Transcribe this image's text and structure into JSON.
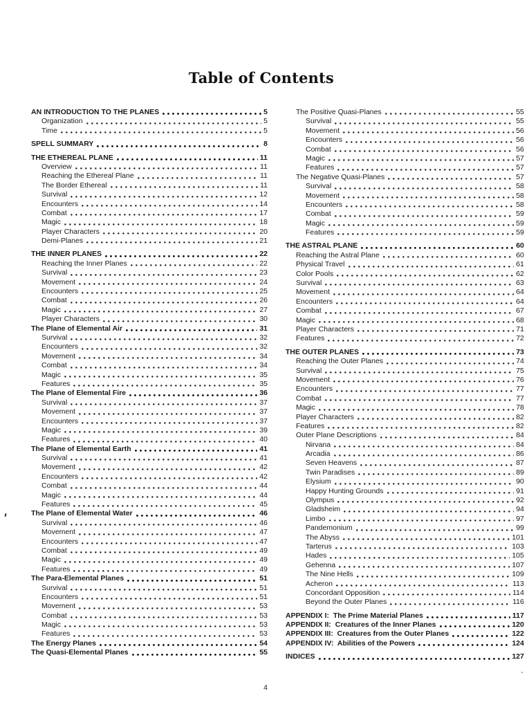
{
  "title": "Table of Contents",
  "page_number": "4",
  "columns": {
    "left": [
      {
        "label": "AN INTRODUCTION TO THE PLANES",
        "page": "5",
        "level": 0,
        "bold": true,
        "gap": false
      },
      {
        "label": "Organization",
        "page": "5",
        "level": 1,
        "bold": false,
        "gap": false
      },
      {
        "label": "Time",
        "page": "5",
        "level": 1,
        "bold": false,
        "gap": false
      },
      {
        "label": "SPELL SUMMARY",
        "page": "8",
        "level": 0,
        "bold": true,
        "gap": true
      },
      {
        "label": "THE ETHEREAL PLANE",
        "page": "11",
        "level": 0,
        "bold": true,
        "gap": true
      },
      {
        "label": "Overview",
        "page": "11",
        "level": 1,
        "bold": false,
        "gap": false
      },
      {
        "label": "Reaching the Ethereal Plane",
        "page": "11",
        "level": 1,
        "bold": false,
        "gap": false
      },
      {
        "label": "The Border Ethereal",
        "page": "11",
        "level": 1,
        "bold": false,
        "gap": false
      },
      {
        "label": "Survival",
        "page": "12",
        "level": 1,
        "bold": false,
        "gap": false
      },
      {
        "label": "Encounters",
        "page": "14",
        "level": 1,
        "bold": false,
        "gap": false
      },
      {
        "label": "Combat",
        "page": "17",
        "level": 1,
        "bold": false,
        "gap": false
      },
      {
        "label": "Magic",
        "page": "18",
        "level": 1,
        "bold": false,
        "gap": false
      },
      {
        "label": "Player Characters",
        "page": "20",
        "level": 1,
        "bold": false,
        "gap": false
      },
      {
        "label": "Demi-Planes",
        "page": "21",
        "level": 1,
        "bold": false,
        "gap": false
      },
      {
        "label": "THE INNER PLANES",
        "page": "22",
        "level": 0,
        "bold": true,
        "gap": true
      },
      {
        "label": "Reaching the Inner Planes",
        "page": "22",
        "level": 1,
        "bold": false,
        "gap": false
      },
      {
        "label": "Survival",
        "page": "23",
        "level": 1,
        "bold": false,
        "gap": false
      },
      {
        "label": "Movement",
        "page": "24",
        "level": 1,
        "bold": false,
        "gap": false
      },
      {
        "label": "Encounters",
        "page": "25",
        "level": 1,
        "bold": false,
        "gap": false
      },
      {
        "label": "Combat",
        "page": "26",
        "level": 1,
        "bold": false,
        "gap": false
      },
      {
        "label": "Magic",
        "page": "27",
        "level": 1,
        "bold": false,
        "gap": false
      },
      {
        "label": "Player Characters",
        "page": "30",
        "level": 1,
        "bold": false,
        "gap": false
      },
      {
        "label": "The Plane of Elemental Air",
        "page": "31",
        "level": 0,
        "bold": true,
        "gap": false
      },
      {
        "label": "Survival",
        "page": "32",
        "level": 1,
        "bold": false,
        "gap": false
      },
      {
        "label": "Encounters",
        "page": "32",
        "level": 1,
        "bold": false,
        "gap": false
      },
      {
        "label": "Movement",
        "page": "34",
        "level": 1,
        "bold": false,
        "gap": false
      },
      {
        "label": "Combat",
        "page": "34",
        "level": 1,
        "bold": false,
        "gap": false
      },
      {
        "label": "Magic",
        "page": "35",
        "level": 1,
        "bold": false,
        "gap": false
      },
      {
        "label": "Features",
        "page": "35",
        "level": 1,
        "bold": false,
        "gap": false
      },
      {
        "label": "The Plane of Elemental Fire",
        "page": "36",
        "level": 0,
        "bold": true,
        "gap": false
      },
      {
        "label": "Survival",
        "page": "37",
        "level": 1,
        "bold": false,
        "gap": false
      },
      {
        "label": "Movement",
        "page": "37",
        "level": 1,
        "bold": false,
        "gap": false
      },
      {
        "label": "Encounters",
        "page": "37",
        "level": 1,
        "bold": false,
        "gap": false
      },
      {
        "label": "Magic",
        "page": "39",
        "level": 1,
        "bold": false,
        "gap": false
      },
      {
        "label": "Features",
        "page": "40",
        "level": 1,
        "bold": false,
        "gap": false
      },
      {
        "label": "The Plane of Elemental Earth",
        "page": "41",
        "level": 0,
        "bold": true,
        "gap": false
      },
      {
        "label": "Survival",
        "page": "41",
        "level": 1,
        "bold": false,
        "gap": false
      },
      {
        "label": "Movement",
        "page": "42",
        "level": 1,
        "bold": false,
        "gap": false
      },
      {
        "label": "Encounters",
        "page": "42",
        "level": 1,
        "bold": false,
        "gap": false
      },
      {
        "label": "Combat",
        "page": "44",
        "level": 1,
        "bold": false,
        "gap": false
      },
      {
        "label": "Magic",
        "page": "44",
        "level": 1,
        "bold": false,
        "gap": false
      },
      {
        "label": "Features",
        "page": "45",
        "level": 1,
        "bold": false,
        "gap": false
      },
      {
        "label": "The Plane of Elemental Water",
        "page": "46",
        "level": 0,
        "bold": true,
        "gap": false
      },
      {
        "label": "Survival",
        "page": "46",
        "level": 1,
        "bold": false,
        "gap": false
      },
      {
        "label": "Movement",
        "page": "47",
        "level": 1,
        "bold": false,
        "gap": false
      },
      {
        "label": "Encounters",
        "page": "47",
        "level": 1,
        "bold": false,
        "gap": false
      },
      {
        "label": "Combat",
        "page": "49",
        "level": 1,
        "bold": false,
        "gap": false
      },
      {
        "label": "Magic",
        "page": "49",
        "level": 1,
        "bold": false,
        "gap": false
      },
      {
        "label": "Features",
        "page": "49",
        "level": 1,
        "bold": false,
        "gap": false
      },
      {
        "label": "The Para-Elemental Planes",
        "page": "51",
        "level": 0,
        "bold": true,
        "gap": false
      },
      {
        "label": "Survival",
        "page": "51",
        "level": 1,
        "bold": false,
        "gap": false
      },
      {
        "label": "Encounters",
        "page": "51",
        "level": 1,
        "bold": false,
        "gap": false
      },
      {
        "label": "Movement",
        "page": "53",
        "level": 1,
        "bold": false,
        "gap": false
      },
      {
        "label": "Combat",
        "page": "53",
        "level": 1,
        "bold": false,
        "gap": false
      },
      {
        "label": "Magic",
        "page": "53",
        "level": 1,
        "bold": false,
        "gap": false
      },
      {
        "label": "Features",
        "page": "53",
        "level": 1,
        "bold": false,
        "gap": false
      },
      {
        "label": "The Energy Planes",
        "page": "54",
        "level": 0,
        "bold": true,
        "gap": false
      },
      {
        "label": "The Quasi-Elemental Planes",
        "page": "55",
        "level": 0,
        "bold": true,
        "gap": false
      }
    ],
    "right": [
      {
        "label": "The Positive Quasi-Planes",
        "page": "55",
        "level": 1,
        "bold": false,
        "gap": false
      },
      {
        "label": "Survival",
        "page": "55",
        "level": 2,
        "bold": false,
        "gap": false
      },
      {
        "label": "Movement",
        "page": "56",
        "level": 2,
        "bold": false,
        "gap": false
      },
      {
        "label": "Encounters",
        "page": "56",
        "level": 2,
        "bold": false,
        "gap": false
      },
      {
        "label": "Combat",
        "page": "56",
        "level": 2,
        "bold": false,
        "gap": false
      },
      {
        "label": "Magic",
        "page": "57",
        "level": 2,
        "bold": false,
        "gap": false
      },
      {
        "label": "Features",
        "page": "57",
        "level": 2,
        "bold": false,
        "gap": false
      },
      {
        "label": "The Negative Quasi-Planes",
        "page": "57",
        "level": 1,
        "bold": false,
        "gap": false
      },
      {
        "label": "Survival",
        "page": "58",
        "level": 2,
        "bold": false,
        "gap": false
      },
      {
        "label": "Movement",
        "page": "58",
        "level": 2,
        "bold": false,
        "gap": false
      },
      {
        "label": "Encounters",
        "page": "58",
        "level": 2,
        "bold": false,
        "gap": false
      },
      {
        "label": "Combat",
        "page": "59",
        "level": 2,
        "bold": false,
        "gap": false
      },
      {
        "label": "Magic",
        "page": "59",
        "level": 2,
        "bold": false,
        "gap": false
      },
      {
        "label": "Features",
        "page": "59",
        "level": 2,
        "bold": false,
        "gap": false
      },
      {
        "label": "THE ASTRAL PLANE",
        "page": "60",
        "level": 0,
        "bold": true,
        "gap": true
      },
      {
        "label": "Reaching the Astral Plane",
        "page": "60",
        "level": 1,
        "bold": false,
        "gap": false
      },
      {
        "label": "Physical Travel",
        "page": "61",
        "level": 1,
        "bold": false,
        "gap": false
      },
      {
        "label": "Color Pools",
        "page": "62",
        "level": 1,
        "bold": false,
        "gap": false
      },
      {
        "label": "Survival",
        "page": "63",
        "level": 1,
        "bold": false,
        "gap": false
      },
      {
        "label": "Movement",
        "page": "64",
        "level": 1,
        "bold": false,
        "gap": false
      },
      {
        "label": "Encounters",
        "page": "64",
        "level": 1,
        "bold": false,
        "gap": false
      },
      {
        "label": "Combat",
        "page": "67",
        "level": 1,
        "bold": false,
        "gap": false
      },
      {
        "label": "Magic",
        "page": "68",
        "level": 1,
        "bold": false,
        "gap": false
      },
      {
        "label": "Player Characters",
        "page": "71",
        "level": 1,
        "bold": false,
        "gap": false
      },
      {
        "label": "Features",
        "page": "72",
        "level": 1,
        "bold": false,
        "gap": false
      },
      {
        "label": "THE OUTER PLANES",
        "page": "73",
        "level": 0,
        "bold": true,
        "gap": true
      },
      {
        "label": "Reaching the Outer Planes",
        "page": "74",
        "level": 1,
        "bold": false,
        "gap": false
      },
      {
        "label": "Survival",
        "page": "75",
        "level": 1,
        "bold": false,
        "gap": false
      },
      {
        "label": "Movement",
        "page": "76",
        "level": 1,
        "bold": false,
        "gap": false
      },
      {
        "label": "Encounters",
        "page": "77",
        "level": 1,
        "bold": false,
        "gap": false
      },
      {
        "label": "Combat",
        "page": "77",
        "level": 1,
        "bold": false,
        "gap": false
      },
      {
        "label": "Magic",
        "page": "78",
        "level": 1,
        "bold": false,
        "gap": false
      },
      {
        "label": "Player Characters",
        "page": "82",
        "level": 1,
        "bold": false,
        "gap": false
      },
      {
        "label": "Features",
        "page": "82",
        "level": 1,
        "bold": false,
        "gap": false
      },
      {
        "label": "Outer Plane Descriptions",
        "page": "84",
        "level": 1,
        "bold": false,
        "gap": false
      },
      {
        "label": "Nirvana",
        "page": "84",
        "level": 2,
        "bold": false,
        "gap": false
      },
      {
        "label": "Arcadia",
        "page": "86",
        "level": 2,
        "bold": false,
        "gap": false
      },
      {
        "label": "Seven Heavens",
        "page": "87",
        "level": 2,
        "bold": false,
        "gap": false
      },
      {
        "label": "Twin Paradises",
        "page": "89",
        "level": 2,
        "bold": false,
        "gap": false
      },
      {
        "label": "Elysium",
        "page": "90",
        "level": 2,
        "bold": false,
        "gap": false
      },
      {
        "label": "Happy Hunting Grounds",
        "page": "91",
        "level": 2,
        "bold": false,
        "gap": false
      },
      {
        "label": "Olympus",
        "page": "92",
        "level": 2,
        "bold": false,
        "gap": false
      },
      {
        "label": "Gladsheim",
        "page": "94",
        "level": 2,
        "bold": false,
        "gap": false
      },
      {
        "label": "Limbo",
        "page": "97",
        "level": 2,
        "bold": false,
        "gap": false
      },
      {
        "label": "Pandemonium",
        "page": "99",
        "level": 2,
        "bold": false,
        "gap": false
      },
      {
        "label": "The Abyss",
        "page": "101",
        "level": 2,
        "bold": false,
        "gap": false
      },
      {
        "label": "Tarterus",
        "page": "103",
        "level": 2,
        "bold": false,
        "gap": false
      },
      {
        "label": "Hades",
        "page": "105",
        "level": 2,
        "bold": false,
        "gap": false
      },
      {
        "label": "Gehenna",
        "page": "107",
        "level": 2,
        "bold": false,
        "gap": false
      },
      {
        "label": "The Nine Hells",
        "page": "109",
        "level": 2,
        "bold": false,
        "gap": false
      },
      {
        "label": "Acheron",
        "page": "113",
        "level": 2,
        "bold": false,
        "gap": false
      },
      {
        "label": "Concordant Opposition",
        "page": "114",
        "level": 2,
        "bold": false,
        "gap": false
      },
      {
        "label": "Beyond the Outer Planes",
        "page": "116",
        "level": 2,
        "bold": false,
        "gap": false
      },
      {
        "label": "APPENDIX I:  The Prime Material Planes",
        "page": "117",
        "level": 0,
        "bold": true,
        "gap": true
      },
      {
        "label": "APPENDIX II:  Creatures of the Inner Planes",
        "page": "120",
        "level": 0,
        "bold": true,
        "gap": false
      },
      {
        "label": "APPENDIX III:  Creatures from the Outer Planes",
        "page": "122",
        "level": 0,
        "bold": true,
        "gap": false
      },
      {
        "label": "APPENDIX IV:  Abilities of the Powers",
        "page": "124",
        "level": 0,
        "bold": true,
        "gap": false
      },
      {
        "label": "INDICES",
        "page": "127",
        "level": 0,
        "bold": true,
        "gap": true
      }
    ]
  }
}
